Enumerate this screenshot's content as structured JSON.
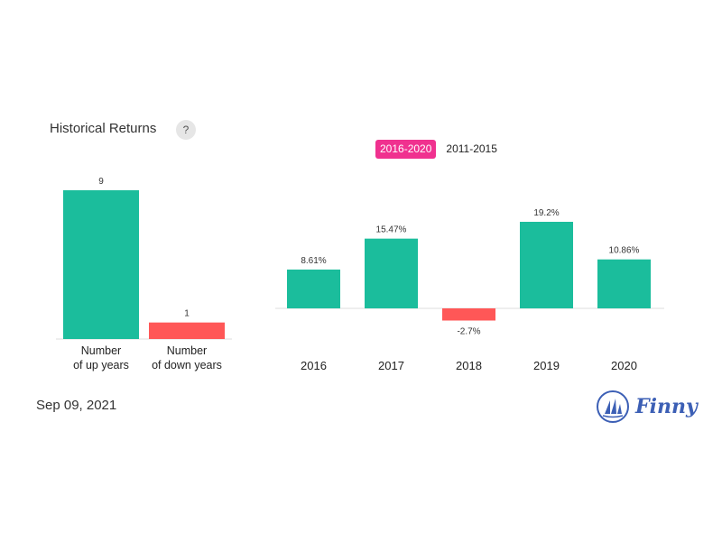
{
  "header": {
    "title": "Historical Returns",
    "help_label": "?"
  },
  "tabs": [
    {
      "label": "2016-2020",
      "active": true
    },
    {
      "label": "2011-2015",
      "active": false
    }
  ],
  "colors": {
    "positive": "#1bbd9c",
    "negative": "#ff5757",
    "tab_active": "#f0318f",
    "brand": "#3c5fb5"
  },
  "chart_data": [
    {
      "type": "bar",
      "categories": [
        [
          "Number",
          "of up years"
        ],
        [
          "Number",
          "of down years"
        ]
      ],
      "values": [
        9,
        1
      ],
      "value_labels": [
        "9",
        "1"
      ],
      "ylim": [
        0,
        9
      ]
    },
    {
      "type": "bar",
      "categories": [
        "2016",
        "2017",
        "2018",
        "2019",
        "2020"
      ],
      "values": [
        8.61,
        15.47,
        -2.7,
        19.2,
        10.86
      ],
      "value_labels": [
        "8.61%",
        "15.47%",
        "-2.7%",
        "19.2%",
        "10.86%"
      ]
    }
  ],
  "footer": {
    "date": "Sep 09, 2021",
    "brand": "Finny",
    "brand_icon": "sailboat-icon"
  }
}
